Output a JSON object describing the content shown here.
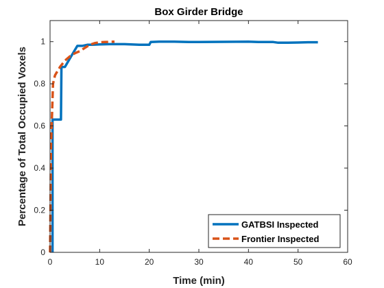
{
  "chart_data": {
    "type": "line",
    "title": "Box Girder Bridge",
    "xlabel": "Time (min)",
    "ylabel": "Percentage of Total Occupied Voxels",
    "xlim": [
      0,
      60
    ],
    "ylim": [
      0,
      1.1
    ],
    "xticks": [
      0,
      10,
      20,
      30,
      40,
      50,
      60
    ],
    "xtick_labels": [
      "0",
      "10",
      "20",
      "30",
      "40",
      "50",
      "60"
    ],
    "yticks": [
      0,
      0.2,
      0.4,
      0.6,
      0.8,
      1
    ],
    "ytick_labels": [
      "0",
      "0.2",
      "0.4",
      "0.6",
      "0.8",
      "1"
    ],
    "grid": false,
    "legend_position": "bottom-right",
    "series": [
      {
        "name": "GATBSI Inspected",
        "color": "#0072BD",
        "style": "solid",
        "x": [
          0.5,
          0.5,
          2.2,
          2.3,
          3.0,
          4.0,
          5.5,
          6.5,
          7.5,
          8.5,
          10,
          12,
          15,
          18,
          20,
          20.3,
          22,
          25,
          28,
          30,
          35,
          40,
          42,
          45,
          46,
          48,
          50,
          52,
          54
        ],
        "y": [
          0.0,
          0.63,
          0.63,
          0.88,
          0.88,
          0.92,
          0.98,
          0.98,
          0.985,
          0.985,
          0.987,
          0.988,
          0.988,
          0.985,
          0.985,
          0.998,
          1.0,
          1.0,
          0.998,
          0.998,
          0.999,
          1.0,
          0.998,
          0.998,
          0.995,
          0.995,
          0.996,
          0.997,
          0.997
        ]
      },
      {
        "name": "Frontier Inspected",
        "color": "#D95319",
        "style": "dashed",
        "x": [
          0,
          0.2,
          0.6,
          1.0,
          1.5,
          2.0,
          3.0,
          4.0,
          5.0,
          6.0,
          7.0,
          8.0,
          9.0,
          10.0,
          11.0,
          12.0,
          13.0
        ],
        "y": [
          0.0,
          0.5,
          0.8,
          0.84,
          0.86,
          0.88,
          0.91,
          0.93,
          0.945,
          0.955,
          0.97,
          0.985,
          0.993,
          0.997,
          0.998,
          0.999,
          1.0
        ]
      }
    ]
  }
}
